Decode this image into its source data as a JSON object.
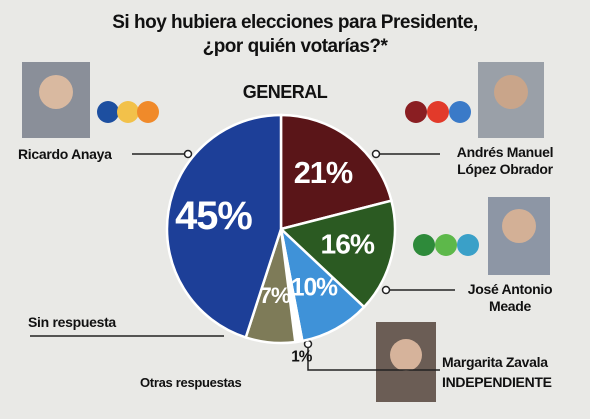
{
  "chart_data": {
    "type": "pie",
    "title": [
      "Si hoy hubiera elecciones para Presidente,",
      "¿por quién votarías?*"
    ],
    "subtitle": "GENERAL",
    "categories": [
      "Andrés Manuel López Obrador",
      "José Antonio Meade",
      "Margarita Zavala",
      "Otras respuestas",
      "Sin respuesta",
      "Ricardo Anaya"
    ],
    "values": [
      21,
      16,
      10,
      1,
      7,
      45
    ],
    "value_labels": [
      "21%",
      "16%",
      "10%",
      "1%",
      "7%",
      "45%"
    ],
    "colors": [
      "#5a1518",
      "#2b5a22",
      "#3f92d8",
      "#ffffff",
      "#7e7b58",
      "#1d3f98"
    ],
    "annotation": "INDEPENDIENTE"
  }
}
